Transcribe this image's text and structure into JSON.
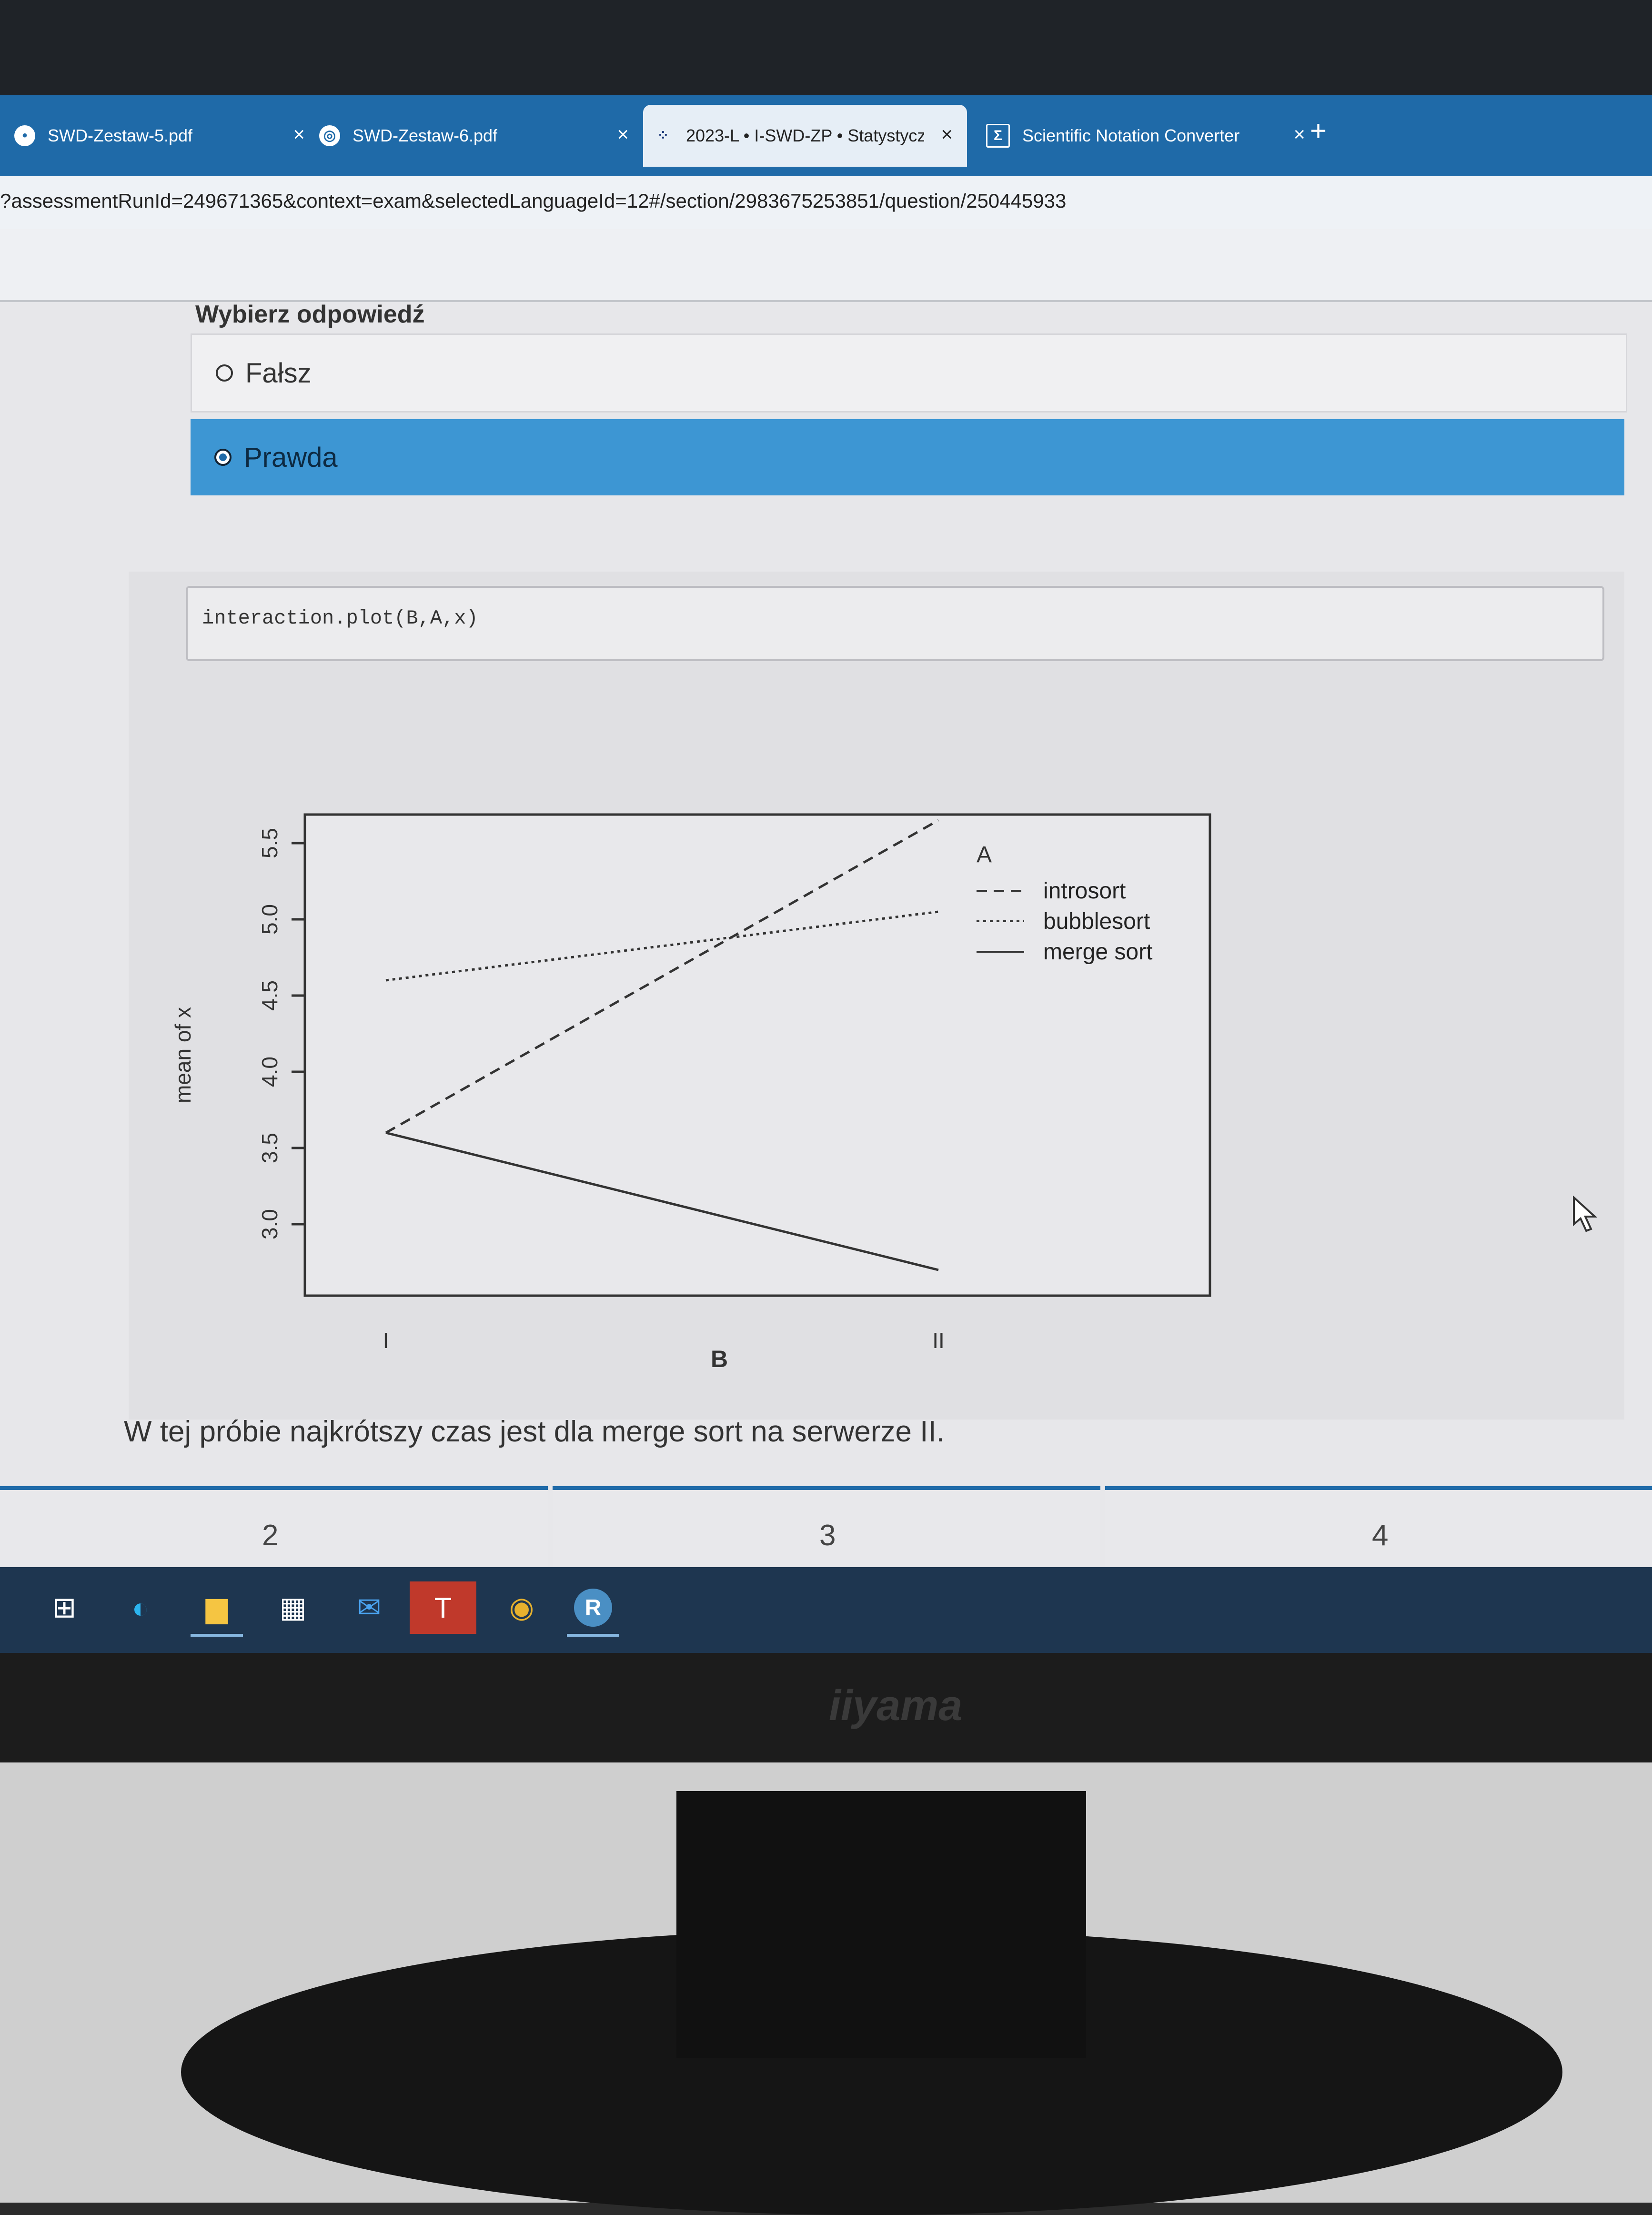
{
  "browser": {
    "tabs": [
      {
        "title": "SWD-Zestaw-5.pdf",
        "icon": "pdf-icon"
      },
      {
        "title": "SWD-Zestaw-6.pdf",
        "icon": "globe-icon"
      },
      {
        "title": "2023-L • I-SWD-ZP • Statystyczı",
        "icon": "moodle-icon"
      },
      {
        "title": "Scientific Notation Converter",
        "icon": "sigma-icon"
      }
    ],
    "close_glyph": "×",
    "new_tab_glyph": "+",
    "url": "?assessmentRunId=249671365&context=exam&selectedLanguageId=12#/section/2983675253851/question/250445933"
  },
  "question": {
    "heading": "Wybierz odpowiedź",
    "options": [
      {
        "label": "Fałsz",
        "selected": false
      },
      {
        "label": "Prawda",
        "selected": true
      }
    ],
    "code": "interaction.plot(B,A,x)",
    "statement": "W tej próbie najkrótszy czas jest dla merge sort na serwerze II."
  },
  "chart_data": {
    "type": "line",
    "title": "",
    "xlabel": "B",
    "ylabel": "mean of x",
    "categories": [
      "I",
      "II"
    ],
    "ylim": [
      3.0,
      5.5
    ],
    "yticks": [
      "3.0",
      "3.5",
      "4.0",
      "4.5",
      "5.0",
      "5.5"
    ],
    "legend_title": "A",
    "legend_position": "top-right",
    "series": [
      {
        "name": "introsort",
        "values": [
          3.6,
          5.65
        ],
        "linestyle": "dashed"
      },
      {
        "name": "bubblesort",
        "values": [
          4.6,
          5.05
        ],
        "linestyle": "dotted"
      },
      {
        "name": "merge sort",
        "values": [
          3.6,
          2.7
        ],
        "linestyle": "solid"
      }
    ]
  },
  "pager": {
    "pages": [
      "2",
      "3",
      "4"
    ]
  },
  "taskbar": {
    "icons": [
      "task-view-icon",
      "edge-icon",
      "file-explorer-icon",
      "store-icon",
      "mail-icon",
      "teams-icon",
      "chrome-icon",
      "r-icon"
    ],
    "teams_letter": "T",
    "r_letter": "R"
  },
  "monitor": {
    "brand": "iiyama"
  }
}
